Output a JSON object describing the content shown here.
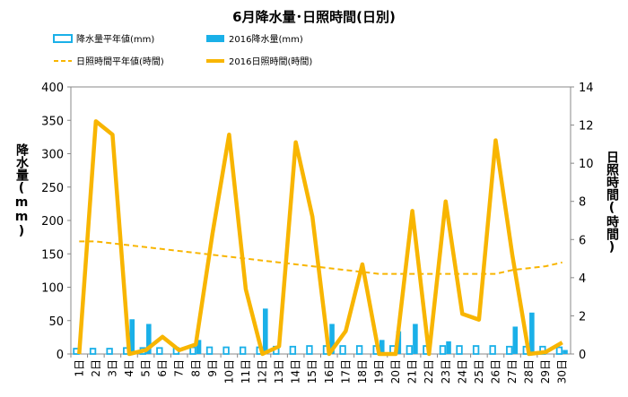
{
  "chart_data": {
    "type": "bar-line-combo",
    "title": "6月降水量･日照時間(日別)",
    "categories": [
      "1日",
      "2日",
      "3日",
      "4日",
      "5日",
      "6日",
      "7日",
      "8日",
      "9日",
      "10日",
      "11日",
      "12日",
      "13日",
      "14日",
      "15日",
      "16日",
      "17日",
      "18日",
      "19日",
      "20日",
      "21日",
      "22日",
      "23日",
      "24日",
      "25日",
      "26日",
      "27日",
      "28日",
      "29日",
      "30日"
    ],
    "y_left": {
      "label": "降水量(mm)",
      "min": 0,
      "max": 400,
      "ticks": [
        0,
        50,
        100,
        150,
        200,
        250,
        300,
        350,
        400
      ]
    },
    "y_right": {
      "label": "日照時間(時間)",
      "min": 0,
      "max": 14,
      "ticks": [
        0,
        2,
        4,
        6,
        8,
        10,
        12,
        14
      ]
    },
    "grid": false,
    "legend_position": "top",
    "series": [
      {
        "name": "降水量平年値(mm)",
        "kind": "bar-outline",
        "axis": "left",
        "color": "#1ab0e8",
        "values": [
          8,
          8,
          8,
          9,
          9,
          9,
          9,
          10,
          10,
          10,
          10,
          10,
          11,
          11,
          12,
          12,
          12,
          12,
          12,
          12,
          12,
          12,
          12,
          12,
          12,
          12,
          11,
          11,
          11,
          10
        ]
      },
      {
        "name": "2016降水量(mm)",
        "kind": "bar",
        "axis": "left",
        "color": "#1ab0e8",
        "values": [
          0,
          0,
          0,
          52,
          45,
          0,
          0,
          21,
          0,
          0,
          0,
          68,
          0,
          0,
          0,
          45,
          0,
          0,
          21,
          34,
          45,
          0,
          19,
          0,
          0,
          0,
          41,
          62,
          0,
          6
        ]
      },
      {
        "name": "日照時間平年値(時間)",
        "kind": "line-dashed",
        "axis": "right",
        "color": "#f8b500",
        "values": [
          5.9,
          5.9,
          5.8,
          5.7,
          5.6,
          5.5,
          5.4,
          5.3,
          5.2,
          5.1,
          5.0,
          4.9,
          4.8,
          4.7,
          4.6,
          4.5,
          4.4,
          4.3,
          4.2,
          4.2,
          4.2,
          4.2,
          4.2,
          4.2,
          4.2,
          4.2,
          4.4,
          4.5,
          4.6,
          4.8
        ]
      },
      {
        "name": "2016日照時間(時間)",
        "kind": "line",
        "axis": "right",
        "color": "#f8b500",
        "values": [
          0,
          12.2,
          11.5,
          0,
          0.2,
          0.9,
          0.2,
          0.5,
          6.3,
          11.5,
          3.4,
          0,
          0.4,
          11.1,
          7.2,
          0,
          1.2,
          4.7,
          0,
          0,
          7.5,
          0,
          8.0,
          2.1,
          1.8,
          11.2,
          5.2,
          0,
          0.1,
          0.6
        ]
      }
    ]
  }
}
